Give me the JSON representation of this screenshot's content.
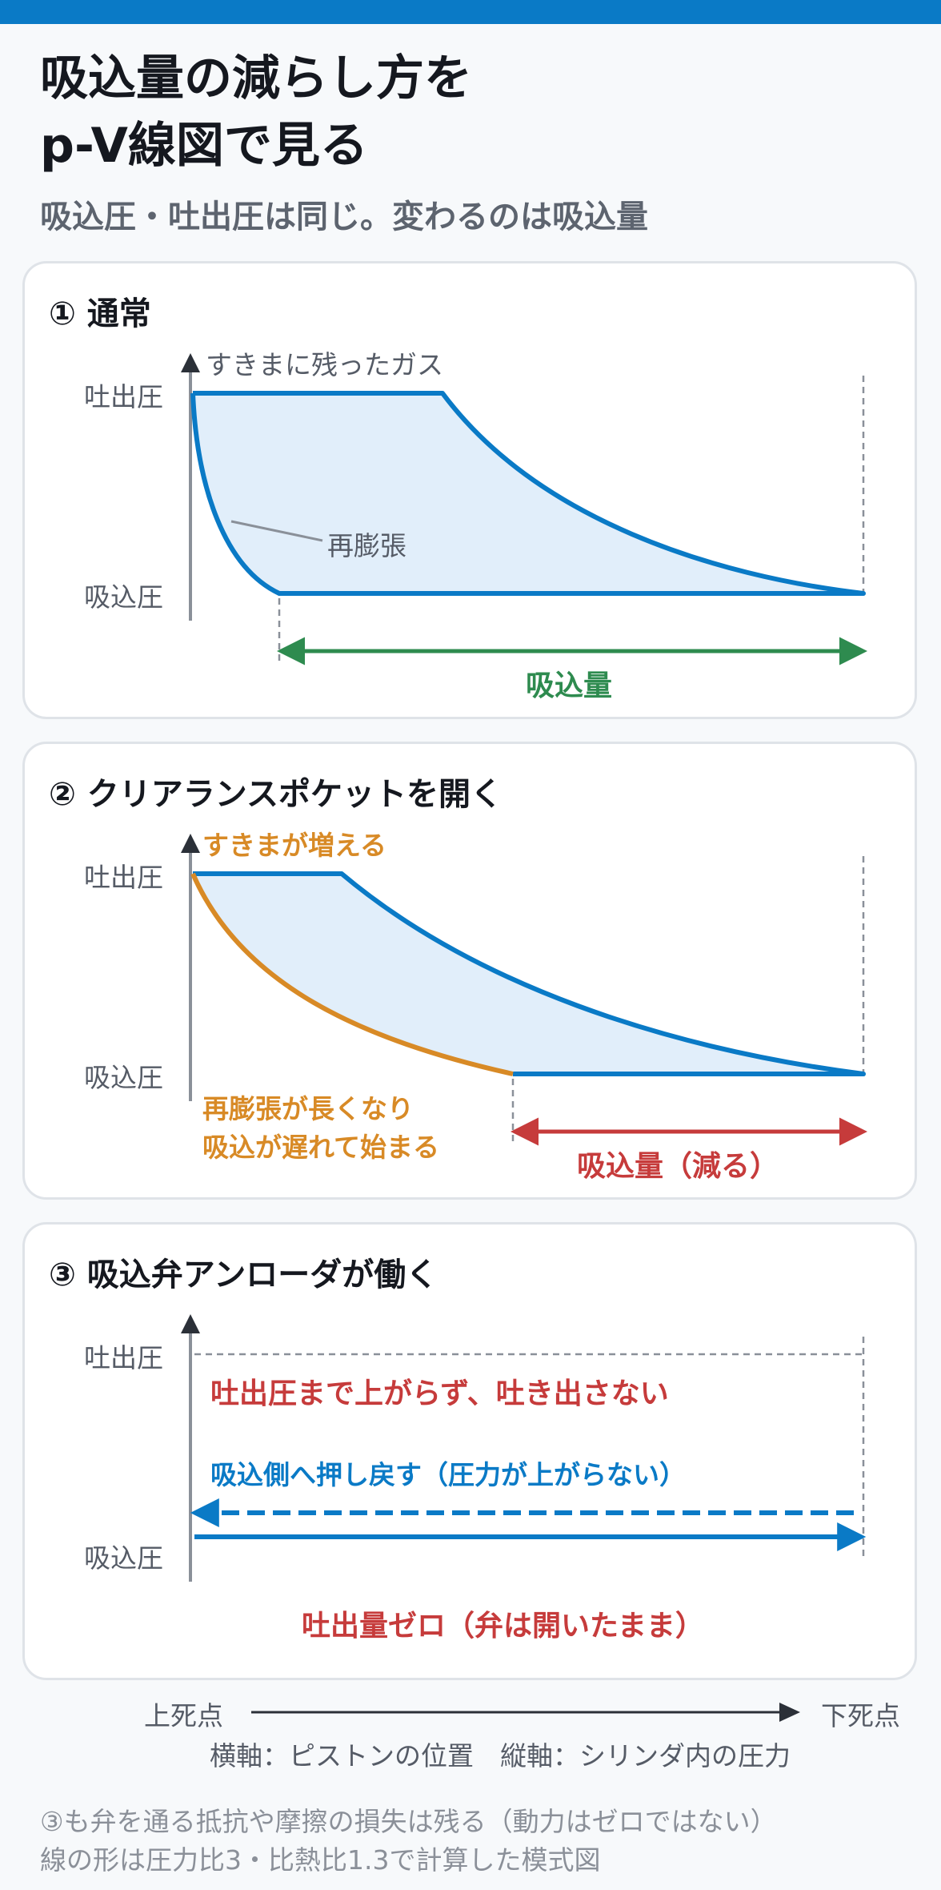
{
  "header": {
    "title_line1": "吸込量の減らし方を",
    "title_line2": "p-V線図で見る",
    "subtitle": "吸込圧・吐出圧は同じ。変わるのは吸込量"
  },
  "axis_labels": {
    "discharge": "吐出圧",
    "suction": "吸込圧"
  },
  "panel1": {
    "title": "① 通常",
    "clearance_label": "すきまに残ったガス",
    "reexpansion_label": "再膨張",
    "intake_label": "吸込量"
  },
  "panel2": {
    "title": "② クリアランスポケットを開く",
    "clearance_label": "すきまが増える",
    "reexpansion_line1": "再膨張が長くなり",
    "reexpansion_line2": "吸込が遅れて始まる",
    "intake_label": "吸込量（減る）"
  },
  "panel3": {
    "title": "③ 吸込弁アンローダが働く",
    "note1": "吐出圧まで上がらず、吐き出さない",
    "note2": "吸込側へ押し戻す（圧力が上がらない）",
    "result": "吐出量ゼロ（弁は開いたまま）"
  },
  "footer": {
    "tdc": "上死点",
    "bdc": "下死点",
    "axes_legend": "横軸：ピストンの位置　縦軸：シリンダ内の圧力",
    "note1": "③も弁を通る抵抗や摩擦の損失は残る（動力はゼロではない）",
    "note2": "線の形は圧力比3・比熱比1.3で計算した模式図"
  },
  "colors": {
    "blue": "#0a7ac6",
    "fill": "#e1eefa",
    "green": "#2e8b4f",
    "red": "#c63b3b",
    "orange": "#d88a26",
    "axis": "#2b3038",
    "gray_text": "#555b66"
  }
}
